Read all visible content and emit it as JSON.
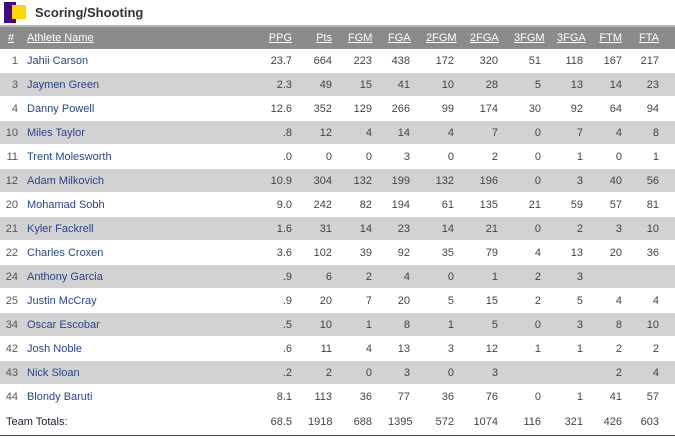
{
  "title_bar": {
    "title": "Scoring/Shooting"
  },
  "colors": {
    "icon_purple": "#400a80",
    "icon_gold": "#ffd700",
    "header_bg": "#8b8b8b",
    "header_text": "#ffffff",
    "row_alt_bg": "#d2d2d2",
    "athlete_link": "#26468c",
    "stat_text": "#444444"
  },
  "table": {
    "columns": [
      {
        "key": "num",
        "label": "#"
      },
      {
        "key": "athlete-name",
        "label": "Athlete Name"
      },
      {
        "key": "ppg",
        "label": "PPG"
      },
      {
        "key": "pts",
        "label": "Pts"
      },
      {
        "key": "fgm",
        "label": "FGM"
      },
      {
        "key": "fga",
        "label": "FGA"
      },
      {
        "key": "2fgm",
        "label": "2FGM"
      },
      {
        "key": "2fga",
        "label": "2FGA"
      },
      {
        "key": "3fgm",
        "label": "3FGM"
      },
      {
        "key": "3fga",
        "label": "3FGA"
      },
      {
        "key": "ftm",
        "label": "FTM"
      },
      {
        "key": "fta",
        "label": "FTA"
      }
    ],
    "rows": [
      [
        "1",
        "Jahii Carson",
        "23.7",
        "664",
        "223",
        "438",
        "172",
        "320",
        "51",
        "118",
        "167",
        "217"
      ],
      [
        "3",
        "Jaymen Green",
        "2.3",
        "49",
        "15",
        "41",
        "10",
        "28",
        "5",
        "13",
        "14",
        "23"
      ],
      [
        "4",
        "Danny Powell",
        "12.6",
        "352",
        "129",
        "266",
        "99",
        "174",
        "30",
        "92",
        "64",
        "94"
      ],
      [
        "10",
        "Miles Taylor",
        ".8",
        "12",
        "4",
        "14",
        "4",
        "7",
        "0",
        "7",
        "4",
        "8"
      ],
      [
        "11",
        "Trent Molesworth",
        ".0",
        "0",
        "0",
        "3",
        "0",
        "2",
        "0",
        "1",
        "0",
        "1"
      ],
      [
        "12",
        "Adam Milkovich",
        "10.9",
        "304",
        "132",
        "199",
        "132",
        "196",
        "0",
        "3",
        "40",
        "56"
      ],
      [
        "20",
        "Mohamad Sobh",
        "9.0",
        "242",
        "82",
        "194",
        "61",
        "135",
        "21",
        "59",
        "57",
        "81"
      ],
      [
        "21",
        "Kyler Fackrell",
        "1.6",
        "31",
        "14",
        "23",
        "14",
        "21",
        "0",
        "2",
        "3",
        "10"
      ],
      [
        "22",
        "Charles Croxen",
        "3.6",
        "102",
        "39",
        "92",
        "35",
        "79",
        "4",
        "13",
        "20",
        "36"
      ],
      [
        "24",
        "Anthony Garcia",
        ".9",
        "6",
        "2",
        "4",
        "0",
        "1",
        "2",
        "3",
        "",
        ""
      ],
      [
        "25",
        "Justin McCray",
        ".9",
        "20",
        "7",
        "20",
        "5",
        "15",
        "2",
        "5",
        "4",
        "4"
      ],
      [
        "34",
        "Oscar Escobar",
        ".5",
        "10",
        "1",
        "8",
        "1",
        "5",
        "0",
        "3",
        "8",
        "10"
      ],
      [
        "42",
        "Josh Noble",
        ".6",
        "11",
        "4",
        "13",
        "3",
        "12",
        "1",
        "1",
        "2",
        "2"
      ],
      [
        "43",
        "Nick Sloan",
        ".2",
        "2",
        "0",
        "3",
        "0",
        "3",
        "",
        "",
        "2",
        "4"
      ],
      [
        "44",
        "Blondy Baruti",
        "8.1",
        "113",
        "36",
        "77",
        "36",
        "76",
        "0",
        "1",
        "41",
        "57"
      ]
    ],
    "totals_label": "Team Totals:",
    "totals": [
      "68.5",
      "1918",
      "688",
      "1395",
      "572",
      "1074",
      "116",
      "321",
      "426",
      "603"
    ]
  }
}
